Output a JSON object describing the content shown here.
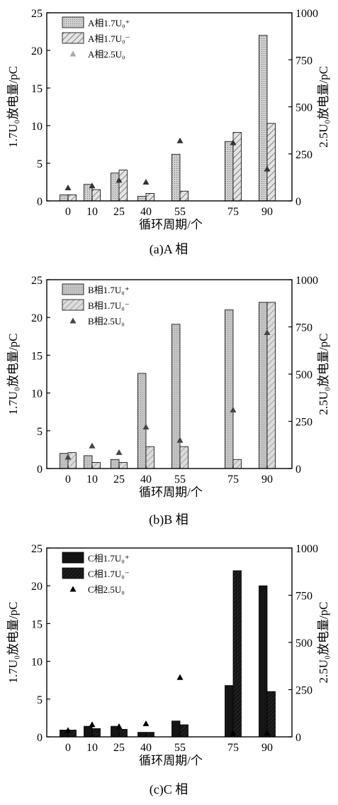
{
  "chart_data": [
    {
      "type": "bar",
      "caption": "(a)A 相",
      "xlabel": "循环周期/个",
      "ylabel_left": "1.7U₀放电量/pC",
      "ylabel_right": "2.5U₀放电量/pC",
      "categories": [
        "0",
        "10",
        "25",
        "40",
        "55",
        "75",
        "90"
      ],
      "ylim_left": [
        0,
        25
      ],
      "yticks_left": [
        0,
        5,
        10,
        15,
        20,
        25
      ],
      "ylim_right": [
        0,
        1000
      ],
      "yticks_right": [
        0,
        250,
        500,
        750,
        1000
      ],
      "legend_position": "top-left",
      "series": [
        {
          "name": "A相1.7U₀⁺",
          "kind": "bar",
          "axis": "left",
          "values": [
            0.8,
            2.2,
            3.7,
            0.6,
            6.2,
            7.9,
            22.0
          ]
        },
        {
          "name": "A相1.7U₀⁻",
          "kind": "bar",
          "axis": "left",
          "values": [
            0.8,
            1.5,
            4.1,
            1.0,
            1.3,
            9.1,
            10.3
          ]
        },
        {
          "name": "A相2.5U₀",
          "kind": "marker",
          "axis": "right",
          "values": [
            70,
            80,
            110,
            100,
            320,
            310,
            170
          ]
        }
      ]
    },
    {
      "type": "bar",
      "caption": "(b)B 相",
      "xlabel": "循环周期/个",
      "ylabel_left": "1.7U₀放电量/pC",
      "ylabel_right": "2.5U₀放电量/pC",
      "categories": [
        "0",
        "10",
        "25",
        "40",
        "55",
        "75",
        "90"
      ],
      "ylim_left": [
        0,
        25
      ],
      "yticks_left": [
        0,
        5,
        10,
        15,
        20,
        25
      ],
      "ylim_right": [
        0,
        1000
      ],
      "yticks_right": [
        0,
        250,
        500,
        750,
        1000
      ],
      "legend_position": "top-left",
      "series": [
        {
          "name": "B相1.7U₀⁺",
          "kind": "bar",
          "axis": "left",
          "values": [
            2.0,
            1.7,
            1.2,
            12.6,
            19.1,
            21.0,
            22.0
          ]
        },
        {
          "name": "B相1.7U₀⁻",
          "kind": "bar",
          "axis": "left",
          "values": [
            2.1,
            0.8,
            0.8,
            2.9,
            2.9,
            1.2,
            22.0
          ]
        },
        {
          "name": "B相2.5U₀",
          "kind": "marker",
          "axis": "right",
          "values": [
            60,
            120,
            85,
            220,
            150,
            310,
            720
          ]
        }
      ]
    },
    {
      "type": "bar",
      "caption": "(c)C 相",
      "xlabel": "循环周期/个",
      "ylabel_left": "1.7U₀放电量/pC",
      "ylabel_right": "2.5U₀放电量/pC",
      "categories": [
        "0",
        "10",
        "25",
        "40",
        "55",
        "75",
        "90"
      ],
      "ylim_left": [
        0,
        25
      ],
      "yticks_left": [
        0,
        5,
        10,
        15,
        20,
        25
      ],
      "ylim_right": [
        0,
        1000
      ],
      "yticks_right": [
        0,
        250,
        500,
        750,
        1000
      ],
      "legend_position": "top-left",
      "series": [
        {
          "name": "C相1.7U₀⁺",
          "kind": "bar",
          "axis": "left",
          "values": [
            0.9,
            1.4,
            1.4,
            0.6,
            2.1,
            6.8,
            20.0
          ]
        },
        {
          "name": "C相1.7U₀⁻",
          "kind": "bar",
          "axis": "left",
          "values": [
            0.9,
            1.1,
            1.0,
            0.6,
            1.6,
            22.0,
            6.0
          ]
        },
        {
          "name": "C相2.5U₀",
          "kind": "marker",
          "axis": "right",
          "values": [
            35,
            65,
            55,
            70,
            315,
            20,
            20
          ]
        }
      ]
    }
  ],
  "colors": {
    "a_bar_plus": "#c8c8c8",
    "a_bar_minus": "#d9d9d9",
    "a_marker": "#333333",
    "b_bar_plus": "#bdbdbd",
    "b_bar_minus": "#d0d0d0",
    "b_marker": "#444444",
    "c_bar_plus": "#141414",
    "c_bar_minus": "#222222",
    "c_marker": "#000000"
  }
}
